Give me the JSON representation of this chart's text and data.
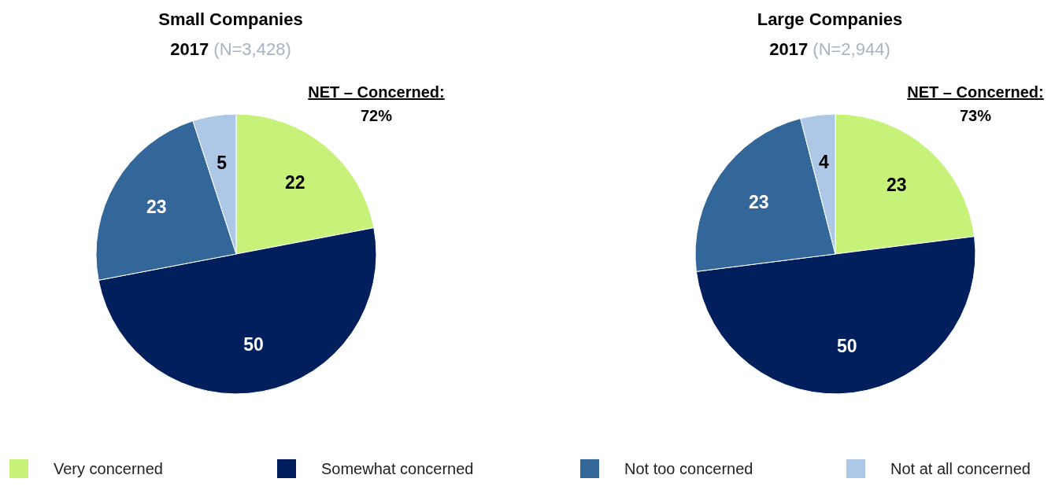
{
  "chart_data": [
    {
      "type": "pie",
      "title": "Small Companies",
      "subtitle": "2017 (N=3,428)",
      "categories": [
        "Very concerned",
        "Somewhat concerned",
        "Not too concerned",
        "Not at all concerned"
      ],
      "values": [
        22,
        50,
        23,
        5
      ],
      "colors": [
        "#c6f279",
        "#001f5c",
        "#336699",
        "#adc8e6"
      ],
      "data_labels": true,
      "legend": "bottom",
      "annotations": [
        "NET – Concerned:",
        "72%"
      ]
    },
    {
      "type": "pie",
      "title": "Large Companies",
      "subtitle": "2017 (N=2,944)",
      "categories": [
        null,
        null,
        null,
        null
      ],
      "values": [
        23,
        50,
        23,
        4
      ],
      "colors": [
        "#c6f279",
        "#001f5c",
        "#336699",
        "#adc8e6"
      ],
      "data_labels": true,
      "annotations": [
        "NET – Concerned:",
        "73%"
      ]
    }
  ]
}
